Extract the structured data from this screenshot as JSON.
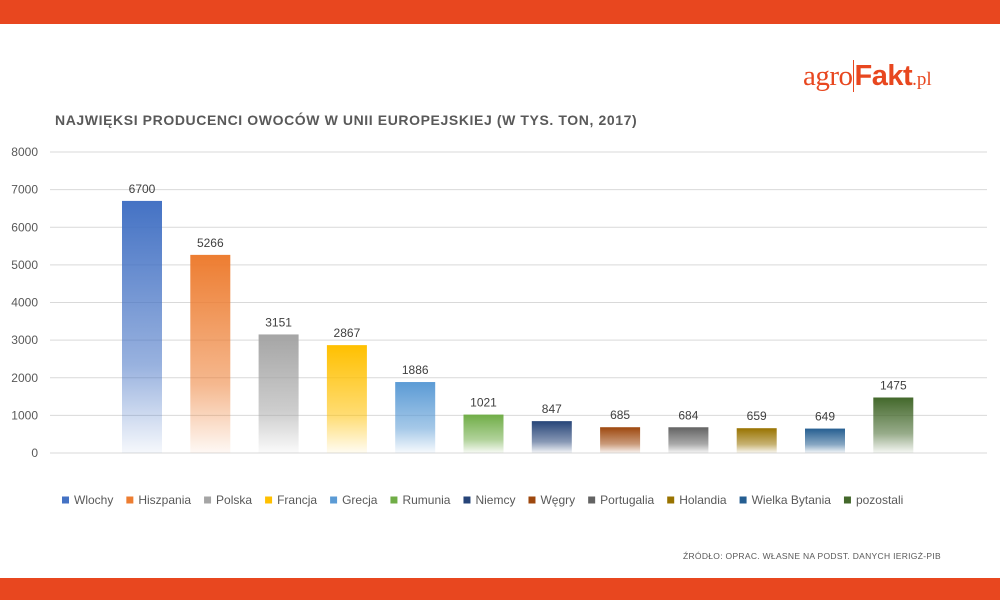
{
  "logo": {
    "part1": "agro",
    "part2": "Fakt",
    "part3": ".pl"
  },
  "source": "ŹRÓDŁO: OPRAC. WŁASNE NA PODST. DANYCH IERIGŻ-PIB",
  "colors": {
    "band": "#e8471f",
    "grid": "#d9d9d9",
    "text": "#595959"
  },
  "chart_data": {
    "type": "bar",
    "title": "NAJWIĘKSI PRODUCENCI OWOCÓW W UNII EUROPEJSKIEJ (W TYS. TON, 2017)",
    "xlabel": "",
    "ylabel": "",
    "ylim": [
      0,
      8000
    ],
    "yticks": [
      0,
      1000,
      2000,
      3000,
      4000,
      5000,
      6000,
      7000,
      8000
    ],
    "grid": true,
    "legend_position": "bottom",
    "categories": [
      "Wlochy",
      "Hiszpania",
      "Polska",
      "Francja",
      "Grecja",
      "Rumunia",
      "Niemcy",
      "Węgry",
      "Portugalia",
      "Holandia",
      "Wielka Bytania",
      "pozostali"
    ],
    "values": [
      6700,
      5266,
      3151,
      2867,
      1886,
      1021,
      847,
      685,
      684,
      659,
      649,
      1475
    ],
    "colors": [
      "#4472c4",
      "#ed7d31",
      "#a5a5a5",
      "#ffc000",
      "#5b9bd5",
      "#70ad47",
      "#264478",
      "#9e480e",
      "#636363",
      "#997300",
      "#255e91",
      "#43682b"
    ]
  }
}
